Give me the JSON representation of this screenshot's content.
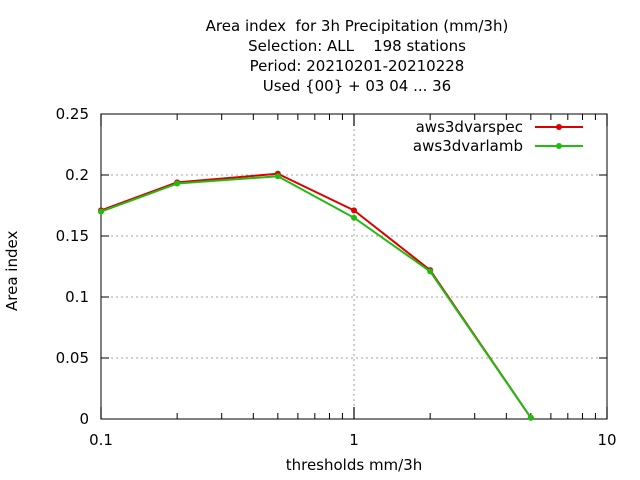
{
  "chart_data": {
    "type": "line",
    "title_lines": [
      "Area index  for 3h Precipitation (mm/3h)",
      "Selection: ALL    198 stations",
      "Period: 20210201-20210228",
      "Used {00} + 03 04 ... 36"
    ],
    "xlabel": "thresholds mm/3h",
    "ylabel": "Area index",
    "x_scale": "log",
    "xlim": [
      0.1,
      10
    ],
    "ylim": [
      0,
      0.25
    ],
    "x_ticks": [
      0.1,
      1,
      10
    ],
    "x_tick_labels": [
      "0.1",
      "1",
      "10"
    ],
    "y_ticks": [
      0,
      0.05,
      0.1,
      0.15,
      0.2,
      0.25
    ],
    "y_tick_labels": [
      "0",
      "0.05",
      "0.1",
      "0.15",
      "0.2",
      "0.25"
    ],
    "grid": true,
    "legend_position": "top-right",
    "x": [
      0.1,
      0.2,
      0.5,
      1,
      2,
      5
    ],
    "series": [
      {
        "name": "aws3dvarspec",
        "color": "#dd0000",
        "values": [
          0.171,
          0.194,
          0.201,
          0.171,
          0.122,
          0.001
        ]
      },
      {
        "name": "aws3dvarlamb",
        "color": "#22bb11",
        "values": [
          0.17,
          0.193,
          0.199,
          0.165,
          0.121,
          0.001
        ]
      }
    ]
  }
}
